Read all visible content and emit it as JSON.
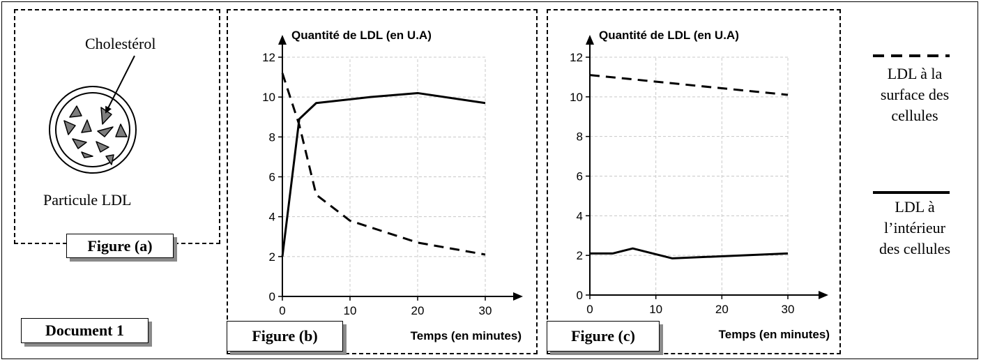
{
  "figure_a": {
    "label": "Figure (a)",
    "cholesterol_label": "Cholestérol",
    "particle_label": "Particule LDL"
  },
  "document_label": "Document 1",
  "legend": {
    "dashed_label_lines": [
      "LDL à la",
      "surface des",
      "cellules"
    ],
    "solid_label_lines": [
      "LDL à",
      "l’intérieur",
      "des cellules"
    ]
  },
  "chart_data": [
    {
      "id": "figure-b",
      "figure_label": "Figure (b)",
      "type": "line",
      "title": "Quantité de LDL (en U.A)",
      "xlabel": "Temps (en minutes)",
      "ylabel": "",
      "xlim": [
        0,
        30
      ],
      "ylim": [
        0,
        12
      ],
      "xticks": [
        0,
        10,
        20,
        30
      ],
      "yticks": [
        0,
        2,
        4,
        6,
        8,
        10,
        12
      ],
      "grid": true,
      "series": [
        {
          "style": "dashed",
          "x": [
            0,
            2.5,
            5,
            10,
            20,
            30
          ],
          "y": [
            11.2,
            8.6,
            5.1,
            3.8,
            2.7,
            2.1
          ]
        },
        {
          "style": "solid",
          "x": [
            0,
            2.5,
            5,
            13,
            20,
            30
          ],
          "y": [
            2.0,
            8.9,
            9.7,
            10.0,
            10.2,
            9.7
          ]
        }
      ]
    },
    {
      "id": "figure-c",
      "figure_label": "Figure (c)",
      "type": "line",
      "title": "Quantité de LDL (en U.A)",
      "xlabel": "Temps (en minutes)",
      "ylabel": "",
      "xlim": [
        0,
        30
      ],
      "ylim": [
        0,
        12
      ],
      "xticks": [
        0,
        10,
        20,
        30
      ],
      "yticks": [
        0,
        2,
        4,
        6,
        8,
        10,
        12
      ],
      "grid": true,
      "series": [
        {
          "style": "dashed",
          "x": [
            0,
            30
          ],
          "y": [
            11.1,
            10.1
          ]
        },
        {
          "style": "solid",
          "x": [
            0,
            3.5,
            6.5,
            12.5,
            30
          ],
          "y": [
            2.1,
            2.1,
            2.35,
            1.85,
            2.1
          ]
        }
      ]
    }
  ]
}
